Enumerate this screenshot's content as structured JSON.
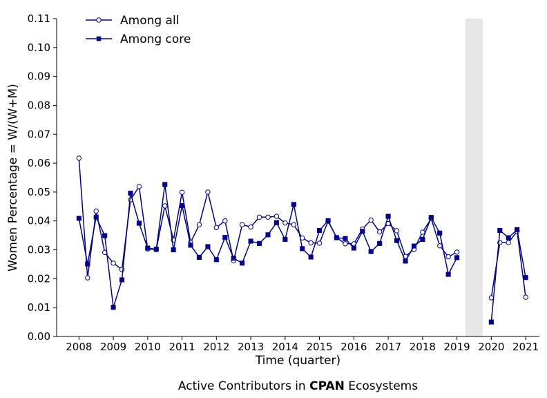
{
  "chart_data": {
    "type": "line",
    "xlabel": "Time (quarter)",
    "ylabel": "Women Percentage = W/(W+M)",
    "caption_prefix": "Active Contributors in ",
    "caption_bold": "CPAN",
    "caption_suffix": " Ecosystems",
    "xlim": [
      2007.35,
      2021.4
    ],
    "ylim": [
      0,
      0.11
    ],
    "x_ticks": [
      2008,
      2009,
      2010,
      2011,
      2012,
      2013,
      2014,
      2015,
      2016,
      2017,
      2018,
      2019,
      2020,
      2021
    ],
    "x_tick_labels": [
      "2008",
      "2009",
      "2010",
      "2011",
      "2012",
      "2013",
      "2014",
      "2015",
      "2016",
      "2017",
      "2018",
      "2019",
      "2020",
      "2021"
    ],
    "y_ticks": [
      0,
      0.01,
      0.02,
      0.03,
      0.04,
      0.05,
      0.06,
      0.07,
      0.08,
      0.09,
      0.1,
      0.11
    ],
    "y_tick_labels": [
      "0.00",
      "0.01",
      "0.02",
      "0.03",
      "0.04",
      "0.05",
      "0.06",
      "0.07",
      "0.08",
      "0.09",
      "0.10",
      "0.11"
    ],
    "shaded_region": [
      2019.25,
      2019.75
    ],
    "legend_position": "top-left",
    "colors": {
      "line": "#00008b",
      "shade": "#e6e6e6"
    },
    "series": [
      {
        "name": "Among all",
        "marker": "open-circle",
        "segments": [
          {
            "x": [
              2008.0,
              2008.25,
              2008.5,
              2008.75,
              2009.0,
              2009.25,
              2009.5,
              2009.75,
              2010.0,
              2010.25,
              2010.5,
              2010.75,
              2011.0,
              2011.25,
              2011.5,
              2011.75,
              2012.0,
              2012.25,
              2012.5,
              2012.75,
              2013.0,
              2013.25,
              2013.5,
              2013.75,
              2014.0,
              2014.25,
              2014.5,
              2014.75,
              2015.0,
              2015.25,
              2015.5,
              2015.75,
              2016.0,
              2016.25,
              2016.5,
              2016.75,
              2017.0,
              2017.25,
              2017.5,
              2017.75,
              2018.0,
              2018.25,
              2018.5,
              2018.75,
              2019.0
            ],
            "y": [
              0.0617,
              0.0203,
              0.0434,
              0.0291,
              0.0254,
              0.0232,
              0.0473,
              0.0519,
              0.0303,
              0.0301,
              0.0452,
              0.0334,
              0.0499,
              0.0326,
              0.0387,
              0.05,
              0.0377,
              0.04,
              0.0262,
              0.0387,
              0.0379,
              0.0413,
              0.0413,
              0.0416,
              0.0393,
              0.0387,
              0.0341,
              0.0324,
              0.0323,
              0.0399,
              0.0342,
              0.0321,
              0.0321,
              0.0372,
              0.0403,
              0.0362,
              0.0391,
              0.0366,
              0.0277,
              0.0302,
              0.0361,
              0.0408,
              0.0314,
              0.0276,
              0.0292
            ]
          },
          {
            "x": [
              2020.0,
              2020.25,
              2020.5,
              2020.75,
              2021.0
            ],
            "y": [
              0.0134,
              0.0325,
              0.0325,
              0.0364,
              0.0136
            ]
          }
        ]
      },
      {
        "name": "Among core",
        "marker": "filled-square",
        "segments": [
          {
            "x": [
              2008.0,
              2008.25,
              2008.5,
              2008.75,
              2009.0,
              2009.25,
              2009.5,
              2009.75,
              2010.0,
              2010.25,
              2010.5,
              2010.75,
              2011.0,
              2011.25,
              2011.5,
              2011.75,
              2012.0,
              2012.25,
              2012.5,
              2012.75,
              2013.0,
              2013.25,
              2013.5,
              2013.75,
              2014.0,
              2014.25,
              2014.5,
              2014.75,
              2015.0,
              2015.25,
              2015.5,
              2015.75,
              2016.0,
              2016.25,
              2016.5,
              2016.75,
              2017.0,
              2017.25,
              2017.5,
              2017.75,
              2018.0,
              2018.25,
              2018.5,
              2018.75,
              2019.0
            ],
            "y": [
              0.0409,
              0.0251,
              0.0413,
              0.0349,
              0.0101,
              0.0196,
              0.0496,
              0.0392,
              0.0306,
              0.0302,
              0.0526,
              0.03,
              0.0453,
              0.0316,
              0.0274,
              0.0311,
              0.0266,
              0.0343,
              0.0271,
              0.0254,
              0.033,
              0.0322,
              0.0352,
              0.0394,
              0.0336,
              0.0457,
              0.0304,
              0.0275,
              0.0367,
              0.0401,
              0.0342,
              0.0339,
              0.0306,
              0.0364,
              0.0294,
              0.0322,
              0.0416,
              0.0332,
              0.0261,
              0.0313,
              0.0336,
              0.0412,
              0.0358,
              0.0215,
              0.0273
            ]
          },
          {
            "x": [
              2020.0,
              2020.25,
              2020.5,
              2020.75,
              2021.0
            ],
            "y": [
              0.005,
              0.0367,
              0.0342,
              0.037,
              0.0204
            ]
          }
        ]
      }
    ]
  }
}
